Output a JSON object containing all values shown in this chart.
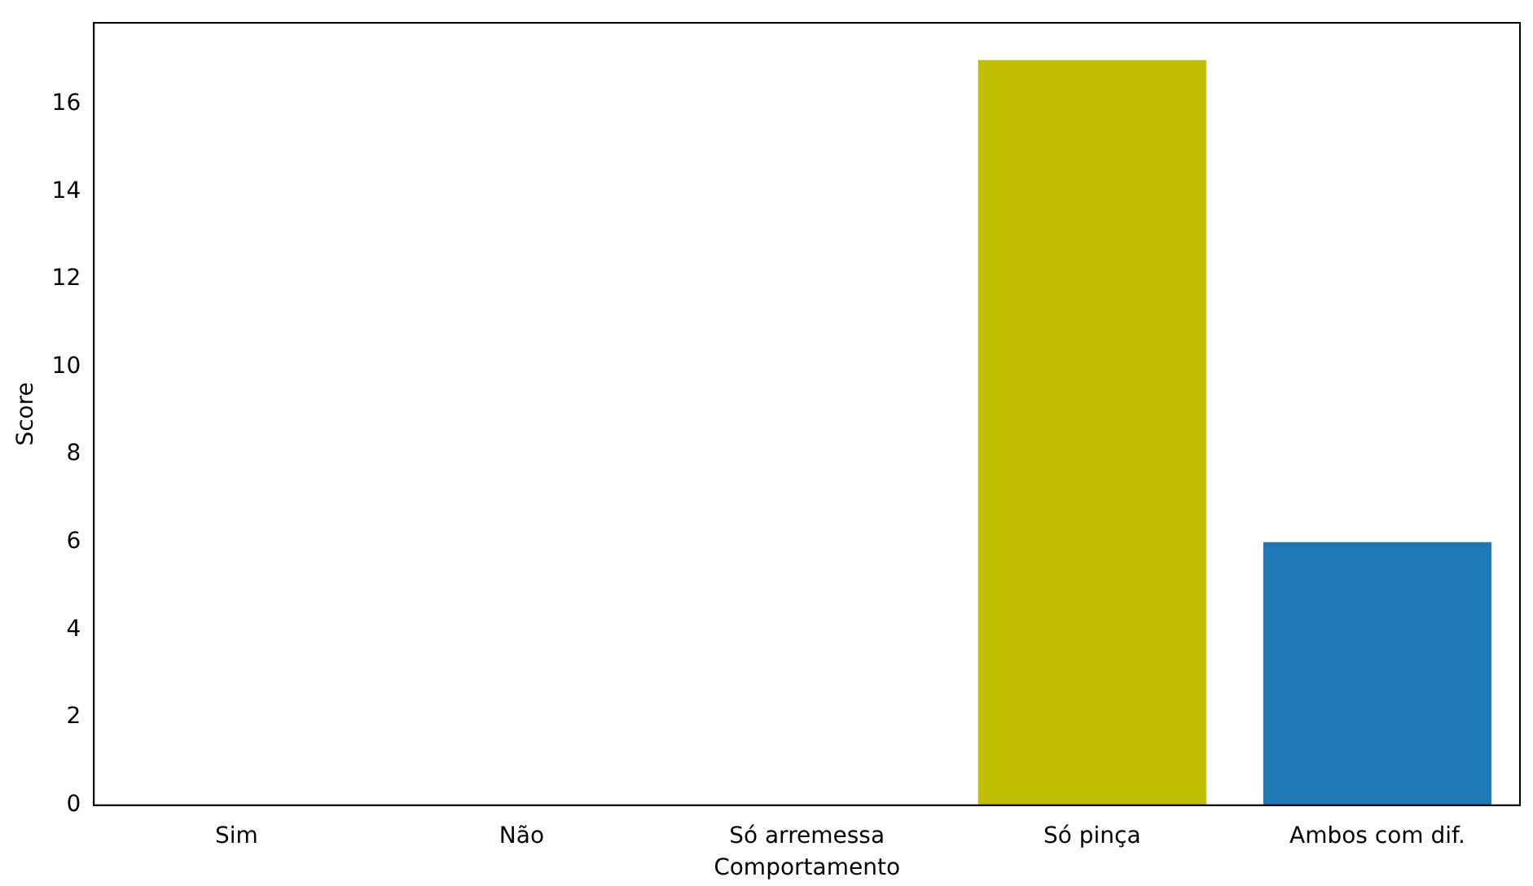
{
  "chart_data": {
    "type": "bar",
    "xlabel": "Comportamento",
    "ylabel": "Score",
    "categories": [
      "Sim",
      "Não",
      "Só arremessa",
      "Só pinça",
      "Ambos com dif."
    ],
    "values": [
      0,
      0,
      0,
      17,
      6
    ],
    "colors": [
      "#1f77b4",
      "#1f77b4",
      "#1f77b4",
      "#bfbf00",
      "#1f77b4"
    ],
    "ylim": [
      0,
      17.85
    ],
    "yticks": [
      0,
      2,
      4,
      6,
      8,
      10,
      12,
      14,
      16
    ],
    "grid": false,
    "legend": false
  }
}
